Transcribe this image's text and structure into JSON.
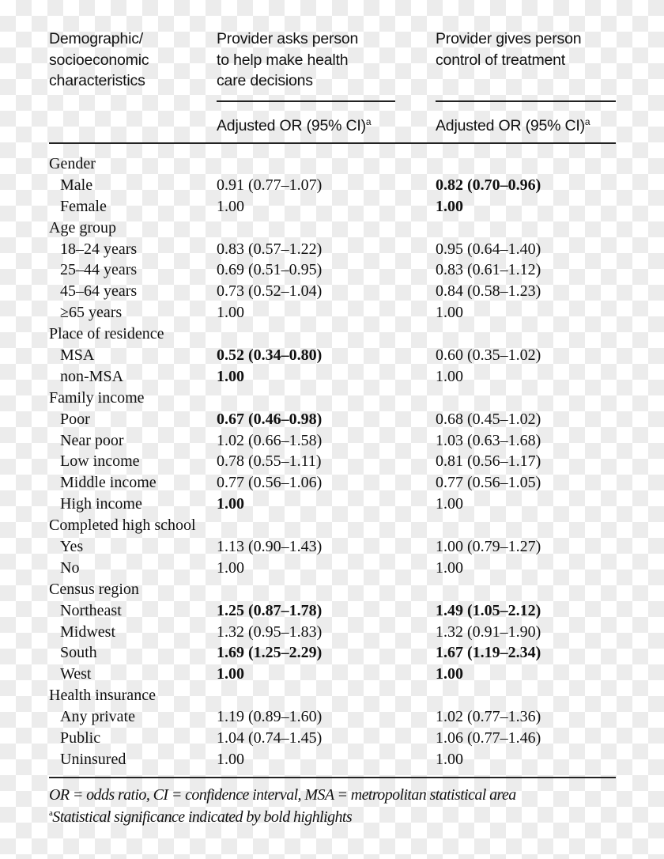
{
  "header": {
    "col0": [
      "Demographic/",
      "socioeconomic",
      "characteristics"
    ],
    "col1": [
      "Provider asks person",
      "to help make health",
      "care decisions"
    ],
    "col2": [
      "Provider gives person",
      "control of treatment"
    ],
    "subheader": "Adjusted OR (95% CI)",
    "subheader_sup": "a"
  },
  "rows": [
    {
      "label": "Gender",
      "indent": false
    },
    {
      "label": "Male",
      "indent": true,
      "c1": "0.91 (0.77–1.07)",
      "c1_bold": false,
      "c2": "0.82 (0.70–0.96)",
      "c2_bold": true
    },
    {
      "label": "Female",
      "indent": true,
      "c1": "1.00",
      "c1_bold": false,
      "c2": "1.00",
      "c2_bold": true
    },
    {
      "label": "Age group",
      "indent": false
    },
    {
      "label": "18–24 years",
      "indent": true,
      "c1": "0.83 (0.57–1.22)",
      "c1_bold": false,
      "c2": "0.95 (0.64–1.40)",
      "c2_bold": false
    },
    {
      "label": "25–44 years",
      "indent": true,
      "c1": "0.69 (0.51–0.95)",
      "c1_bold": false,
      "c2": "0.83 (0.61–1.12)",
      "c2_bold": false
    },
    {
      "label": "45–64 years",
      "indent": true,
      "c1": "0.73 (0.52–1.04)",
      "c1_bold": false,
      "c2": "0.84 (0.58–1.23)",
      "c2_bold": false
    },
    {
      "label": "≥65 years",
      "indent": true,
      "c1": "1.00",
      "c1_bold": false,
      "c2": "1.00",
      "c2_bold": false
    },
    {
      "label": "Place of residence",
      "indent": false
    },
    {
      "label": "MSA",
      "indent": true,
      "c1": "0.52 (0.34–0.80)",
      "c1_bold": true,
      "c2": "0.60 (0.35–1.02)",
      "c2_bold": false
    },
    {
      "label": "non-MSA",
      "indent": true,
      "c1": "1.00",
      "c1_bold": true,
      "c2": "1.00",
      "c2_bold": false
    },
    {
      "label": "Family income",
      "indent": false
    },
    {
      "label": "Poor",
      "indent": true,
      "c1": "0.67 (0.46–0.98)",
      "c1_bold": true,
      "c2": "0.68 (0.45–1.02)",
      "c2_bold": false
    },
    {
      "label": "Near poor",
      "indent": true,
      "c1": "1.02 (0.66–1.58)",
      "c1_bold": false,
      "c2": "1.03 (0.63–1.68)",
      "c2_bold": false
    },
    {
      "label": "Low income",
      "indent": true,
      "c1": "0.78 (0.55–1.11)",
      "c1_bold": false,
      "c2": "0.81 (0.56–1.17)",
      "c2_bold": false
    },
    {
      "label": "Middle income",
      "indent": true,
      "c1": "0.77 (0.56–1.06)",
      "c1_bold": false,
      "c2": "0.77 (0.56–1.05)",
      "c2_bold": false
    },
    {
      "label": "High income",
      "indent": true,
      "c1": "1.00",
      "c1_bold": true,
      "c2": "1.00",
      "c2_bold": false
    },
    {
      "label": "Completed high school",
      "indent": false
    },
    {
      "label": "Yes",
      "indent": true,
      "c1": "1.13 (0.90–1.43)",
      "c1_bold": false,
      "c2": "1.00 (0.79–1.27)",
      "c2_bold": false
    },
    {
      "label": "No",
      "indent": true,
      "c1": "1.00",
      "c1_bold": false,
      "c2": "1.00",
      "c2_bold": false
    },
    {
      "label": "Census region",
      "indent": false
    },
    {
      "label": "Northeast",
      "indent": true,
      "c1": "1.25 (0.87–1.78)",
      "c1_bold": true,
      "c2": "1.49 (1.05–2.12)",
      "c2_bold": true
    },
    {
      "label": "Midwest",
      "indent": true,
      "c1": "1.32 (0.95–1.83)",
      "c1_bold": false,
      "c2": "1.32 (0.91–1.90)",
      "c2_bold": false
    },
    {
      "label": "South",
      "indent": true,
      "c1": "1.69 (1.25–2.29)",
      "c1_bold": true,
      "c2": "1.67 (1.19–2.34)",
      "c2_bold": true
    },
    {
      "label": "West",
      "indent": true,
      "c1": "1.00",
      "c1_bold": true,
      "c2": "1.00",
      "c2_bold": true
    },
    {
      "label": "Health insurance",
      "indent": false
    },
    {
      "label": "Any private",
      "indent": true,
      "c1": "1.19 (0.89–1.60)",
      "c1_bold": false,
      "c2": "1.02 (0.77–1.36)",
      "c2_bold": false
    },
    {
      "label": "Public",
      "indent": true,
      "c1": "1.04 (0.74–1.45)",
      "c1_bold": false,
      "c2": "1.06 (0.77–1.46)",
      "c2_bold": false
    },
    {
      "label": "Uninsured",
      "indent": true,
      "c1": "1.00",
      "c1_bold": false,
      "c2": "1.00",
      "c2_bold": false
    }
  ],
  "footnotes": {
    "abbrev": "OR = odds ratio, CI = confidence interval, MSA = metropolitan statistical area",
    "sig_sup": "a",
    "sig": "Statistical significance indicated by bold highlights"
  }
}
